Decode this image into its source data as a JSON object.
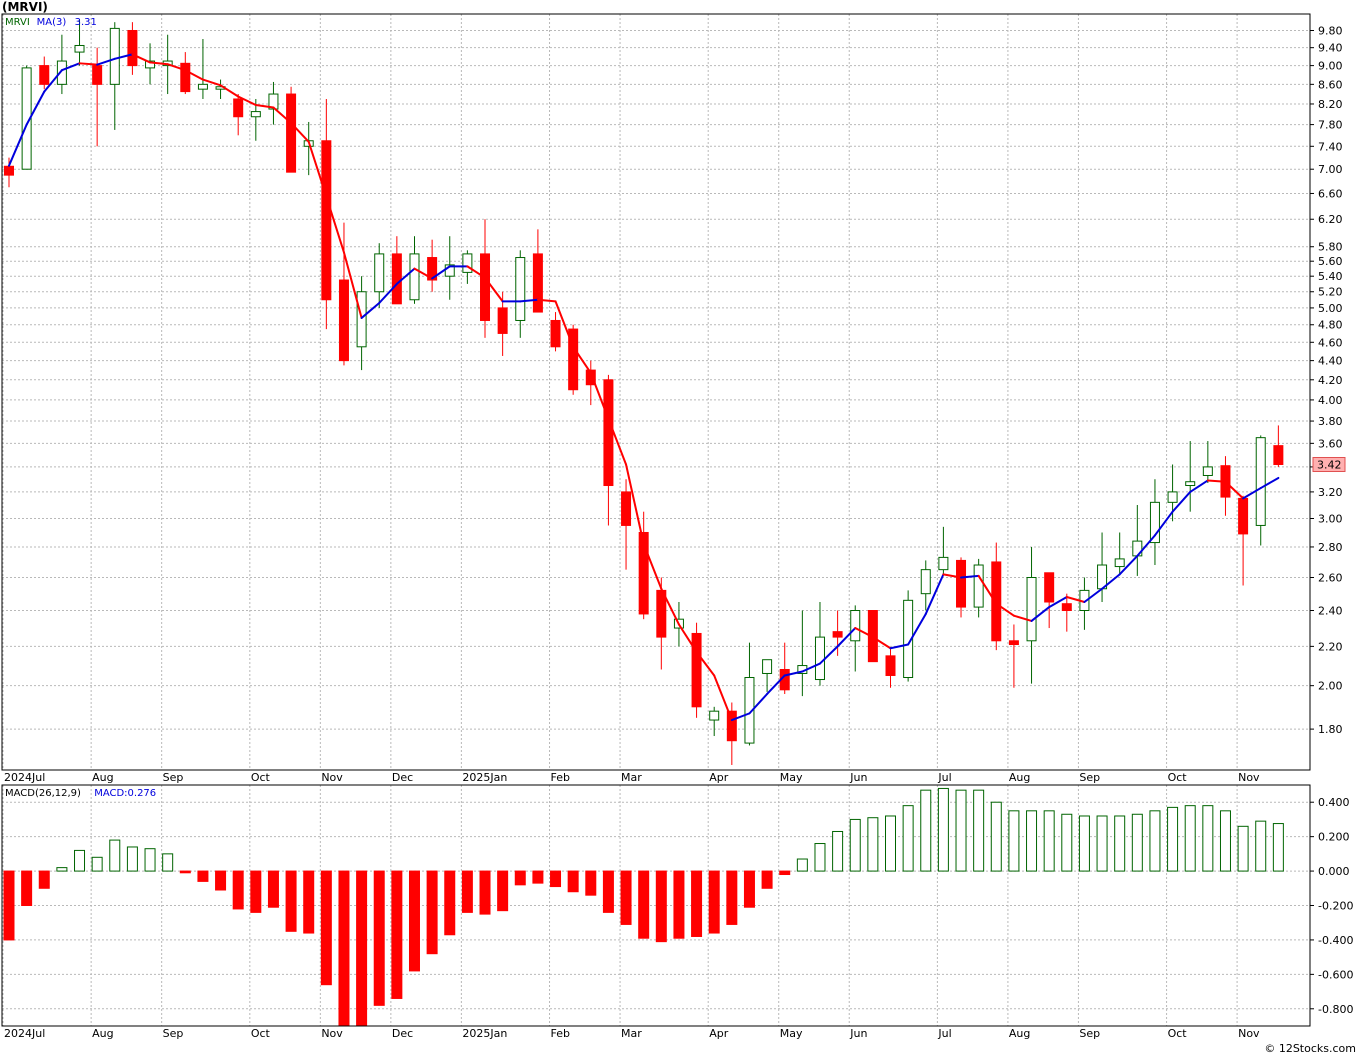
{
  "title": "(MRVI)",
  "credit": "© 12Stocks.com",
  "colors": {
    "up": "#006400",
    "down": "#ff0000",
    "ma_up": "#0000dd",
    "ma_down": "#ff0000",
    "grid": "#b9b9b9"
  },
  "price_panel": {
    "legend": [
      {
        "text": "MRVI",
        "color": "#006400"
      },
      {
        "text": "MA(3)",
        "color": "#0000dd"
      },
      {
        "text": "3.31",
        "color": "#0000dd"
      }
    ],
    "last_price": "3.42",
    "y_ticks": [
      "1.80",
      "2.00",
      "2.20",
      "2.40",
      "2.60",
      "2.80",
      "3.00",
      "3.20",
      "3.40",
      "3.60",
      "3.80",
      "4.00",
      "4.20",
      "4.40",
      "4.60",
      "4.80",
      "5.00",
      "5.20",
      "5.40",
      "5.60",
      "5.80",
      "6.20",
      "6.60",
      "7.00",
      "7.40",
      "7.80",
      "8.20",
      "8.60",
      "9.00",
      "9.40",
      "9.80"
    ]
  },
  "macd_panel": {
    "legend": [
      {
        "text": "MACD(26,12,9)",
        "color": "#000000"
      },
      {
        "text": "MACD:0.276",
        "color": "#0000dd"
      }
    ],
    "y_ticks": [
      "-0.800",
      "-0.600",
      "-0.400",
      "-0.200",
      "0.000",
      "0.200",
      "0.400"
    ]
  },
  "x_labels": [
    {
      "text": "2024Jul",
      "i": 0
    },
    {
      "text": "Aug",
      "i": 5
    },
    {
      "text": "Sep",
      "i": 9
    },
    {
      "text": "Oct",
      "i": 14
    },
    {
      "text": "Nov",
      "i": 18
    },
    {
      "text": "Dec",
      "i": 22
    },
    {
      "text": "2025Jan",
      "i": 26
    },
    {
      "text": "Feb",
      "i": 31
    },
    {
      "text": "Mar",
      "i": 35
    },
    {
      "text": "Apr",
      "i": 40
    },
    {
      "text": "May",
      "i": 44
    },
    {
      "text": "Jun",
      "i": 48
    },
    {
      "text": "Jul",
      "i": 53
    },
    {
      "text": "Aug",
      "i": 57
    },
    {
      "text": "Sep",
      "i": 61
    },
    {
      "text": "Oct",
      "i": 66
    },
    {
      "text": "Nov",
      "i": 70
    }
  ],
  "chart_data": {
    "type": "candlestick",
    "ticker": "MRVI",
    "price_scale": "log",
    "price_range": [
      1.63,
      10.2
    ],
    "macd_range": [
      -0.9,
      0.5
    ],
    "ohlc": [
      [
        7.05,
        7.2,
        6.7,
        6.9
      ],
      [
        7.0,
        9.0,
        7.0,
        8.95
      ],
      [
        9.0,
        9.2,
        8.5,
        8.6
      ],
      [
        8.6,
        9.7,
        8.4,
        9.1
      ],
      [
        9.3,
        10.05,
        9.0,
        9.45
      ],
      [
        9.0,
        9.4,
        7.4,
        8.6
      ],
      [
        8.6,
        10.0,
        7.7,
        9.85
      ],
      [
        9.8,
        10.0,
        8.8,
        9.0
      ],
      [
        8.95,
        9.5,
        8.6,
        9.1
      ],
      [
        9.0,
        9.7,
        8.4,
        9.1
      ],
      [
        9.05,
        9.3,
        8.4,
        8.45
      ],
      [
        8.5,
        9.6,
        8.3,
        8.6
      ],
      [
        8.5,
        8.7,
        8.3,
        8.55
      ],
      [
        8.3,
        8.4,
        7.6,
        7.95
      ],
      [
        7.95,
        8.3,
        7.5,
        8.05
      ],
      [
        8.1,
        8.65,
        7.8,
        8.4
      ],
      [
        8.4,
        8.55,
        6.95,
        6.95
      ],
      [
        7.4,
        7.85,
        6.9,
        7.5
      ],
      [
        7.5,
        8.3,
        4.75,
        5.1
      ],
      [
        5.35,
        6.15,
        4.35,
        4.4
      ],
      [
        4.55,
        5.4,
        4.3,
        5.2
      ],
      [
        5.2,
        5.85,
        5.0,
        5.7
      ],
      [
        5.7,
        5.95,
        5.05,
        5.05
      ],
      [
        5.1,
        5.95,
        5.05,
        5.7
      ],
      [
        5.65,
        5.9,
        5.2,
        5.35
      ],
      [
        5.4,
        5.95,
        5.1,
        5.55
      ],
      [
        5.45,
        5.75,
        5.3,
        5.7
      ],
      [
        5.7,
        6.2,
        4.65,
        4.85
      ],
      [
        5.0,
        5.2,
        4.45,
        4.7
      ],
      [
        4.85,
        5.75,
        4.65,
        5.65
      ],
      [
        5.7,
        6.05,
        4.95,
        4.95
      ],
      [
        4.85,
        4.95,
        4.5,
        4.55
      ],
      [
        4.75,
        4.8,
        4.05,
        4.1
      ],
      [
        4.3,
        4.4,
        3.95,
        4.15
      ],
      [
        4.2,
        4.25,
        2.95,
        3.25
      ],
      [
        3.2,
        3.3,
        2.65,
        2.95
      ],
      [
        2.9,
        3.05,
        2.35,
        2.38
      ],
      [
        2.52,
        2.6,
        2.08,
        2.25
      ],
      [
        2.3,
        2.45,
        2.2,
        2.35
      ],
      [
        2.27,
        2.33,
        1.85,
        1.9
      ],
      [
        1.84,
        1.9,
        1.77,
        1.88
      ],
      [
        1.88,
        1.92,
        1.65,
        1.75
      ],
      [
        1.74,
        2.22,
        1.73,
        2.04
      ],
      [
        2.06,
        2.13,
        1.97,
        2.13
      ],
      [
        2.08,
        2.22,
        1.96,
        1.98
      ],
      [
        2.06,
        2.4,
        1.95,
        2.1
      ],
      [
        2.03,
        2.45,
        2.0,
        2.25
      ],
      [
        2.28,
        2.4,
        2.15,
        2.25
      ],
      [
        2.23,
        2.43,
        2.07,
        2.4
      ],
      [
        2.4,
        2.4,
        2.12,
        2.12
      ],
      [
        2.15,
        2.19,
        1.99,
        2.05
      ],
      [
        2.04,
        2.52,
        2.02,
        2.46
      ],
      [
        2.5,
        2.71,
        2.4,
        2.65
      ],
      [
        2.65,
        2.94,
        2.62,
        2.73
      ],
      [
        2.71,
        2.73,
        2.36,
        2.42
      ],
      [
        2.42,
        2.72,
        2.36,
        2.68
      ],
      [
        2.7,
        2.83,
        2.18,
        2.23
      ],
      [
        2.23,
        2.32,
        1.99,
        2.21
      ],
      [
        2.23,
        2.8,
        2.01,
        2.6
      ],
      [
        2.63,
        2.63,
        2.3,
        2.45
      ],
      [
        2.44,
        2.5,
        2.28,
        2.4
      ],
      [
        2.4,
        2.6,
        2.29,
        2.52
      ],
      [
        2.53,
        2.9,
        2.45,
        2.68
      ],
      [
        2.67,
        2.9,
        2.62,
        2.72
      ],
      [
        2.74,
        3.1,
        2.61,
        2.84
      ],
      [
        2.83,
        3.3,
        2.68,
        3.12
      ],
      [
        3.12,
        3.42,
        2.98,
        3.2
      ],
      [
        3.25,
        3.62,
        3.05,
        3.28
      ],
      [
        3.33,
        3.62,
        3.27,
        3.4
      ],
      [
        3.41,
        3.49,
        3.02,
        3.16
      ],
      [
        3.15,
        3.17,
        2.55,
        2.89
      ],
      [
        2.95,
        3.67,
        2.81,
        3.65
      ],
      [
        3.58,
        3.76,
        3.4,
        3.42
      ]
    ],
    "ma3": [
      7.06,
      7.8,
      8.45,
      8.9,
      9.05,
      9.02,
      9.15,
      9.25,
      9.07,
      9.03,
      8.9,
      8.7,
      8.58,
      8.35,
      8.18,
      8.13,
      7.83,
      7.48,
      6.55,
      5.72,
      4.88,
      5.06,
      5.3,
      5.5,
      5.37,
      5.53,
      5.53,
      5.38,
      5.08,
      5.08,
      5.1,
      5.08,
      4.55,
      4.27,
      3.82,
      3.42,
      2.82,
      2.53,
      2.32,
      2.17,
      2.05,
      1.84,
      1.87,
      1.96,
      2.05,
      2.07,
      2.11,
      2.2,
      2.3,
      2.25,
      2.19,
      2.21,
      2.38,
      2.62,
      2.6,
      2.61,
      2.44,
      2.37,
      2.34,
      2.42,
      2.48,
      2.45,
      2.53,
      2.62,
      2.74,
      2.88,
      3.05,
      3.2,
      3.29,
      3.28,
      3.15,
      3.23,
      3.31
    ],
    "macd_hist": [
      -0.4,
      -0.2,
      -0.1,
      0.02,
      0.12,
      0.08,
      0.18,
      0.14,
      0.13,
      0.1,
      -0.01,
      -0.06,
      -0.11,
      -0.22,
      -0.24,
      -0.21,
      -0.35,
      -0.36,
      -0.66,
      -0.9,
      -0.9,
      -0.78,
      -0.74,
      -0.58,
      -0.48,
      -0.37,
      -0.24,
      -0.25,
      -0.23,
      -0.08,
      -0.07,
      -0.09,
      -0.12,
      -0.14,
      -0.24,
      -0.31,
      -0.39,
      -0.41,
      -0.39,
      -0.38,
      -0.36,
      -0.31,
      -0.21,
      -0.1,
      -0.02,
      0.07,
      0.16,
      0.23,
      0.3,
      0.31,
      0.32,
      0.38,
      0.47,
      0.48,
      0.47,
      0.47,
      0.4,
      0.35,
      0.35,
      0.35,
      0.33,
      0.32,
      0.32,
      0.32,
      0.33,
      0.35,
      0.37,
      0.38,
      0.38,
      0.35,
      0.26,
      0.29,
      0.276
    ]
  }
}
